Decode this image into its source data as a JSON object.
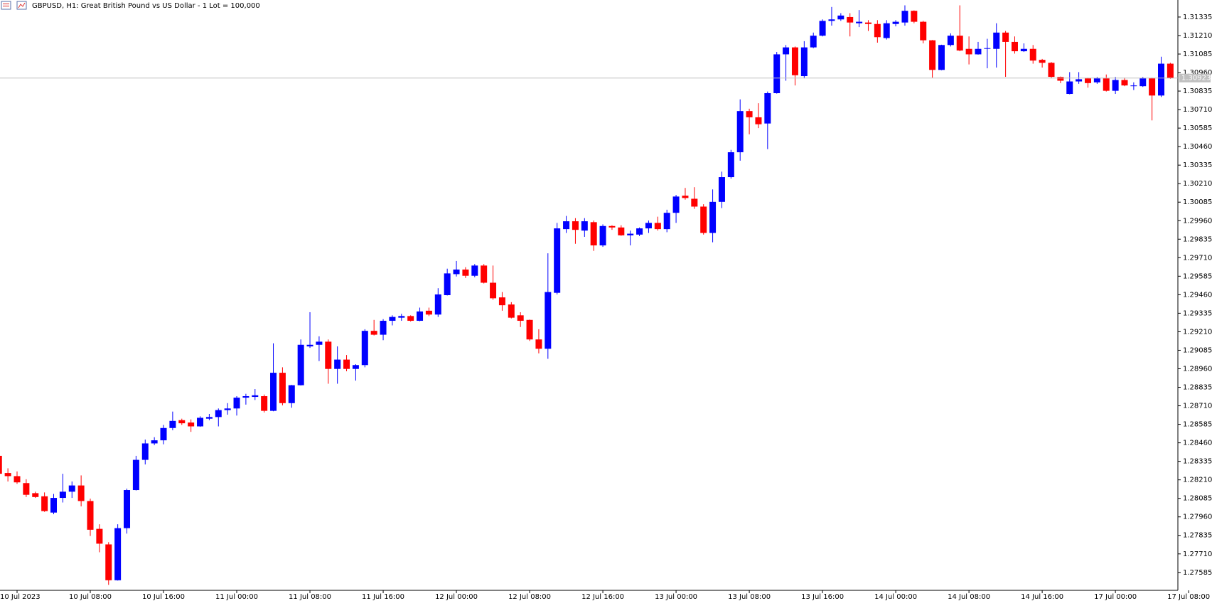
{
  "chart_data": {
    "type": "candlestick",
    "title": "GBPUSD, H1:  Great British Pound vs US Dollar - 1 Lot = 100,000",
    "up_color": "#0000ff",
    "down_color": "#ff0000",
    "grid": false,
    "ylim": [
      1.27464,
      1.3145
    ],
    "yticks": [
      1.27585,
      {
        "value": 1.2771,
        "label": "1.27710"
      },
      1.27835,
      {
        "value": 1.2796,
        "label": "1.27960"
      },
      1.28085,
      {
        "value": 1.2821,
        "label": "1.28210"
      },
      1.28335,
      {
        "value": 1.2846,
        "label": "1.28460"
      },
      1.28585,
      {
        "value": 1.2871,
        "label": "1.28710"
      },
      1.28835,
      {
        "value": 1.2896,
        "label": "1.28960"
      },
      1.29085,
      {
        "value": 1.2921,
        "label": "1.29210"
      },
      1.29335,
      {
        "value": 1.2946,
        "label": "1.29460"
      },
      1.29585,
      {
        "value": 1.2971,
        "label": "1.29710"
      },
      1.29835,
      {
        "value": 1.2996,
        "label": "1.29960"
      },
      1.30085,
      {
        "value": 1.3021,
        "label": "1.30210"
      },
      1.30335,
      {
        "value": 1.3046,
        "label": "1.30460"
      },
      1.30585,
      {
        "value": 1.3071,
        "label": "1.30710"
      },
      1.30835,
      {
        "value": 1.3096,
        "label": "1.30960"
      },
      1.31085,
      {
        "value": 1.3121,
        "label": "1.31210"
      },
      1.31335
    ],
    "bid": 1.30923,
    "categories": [
      null,
      null,
      "10 Jul 2023",
      null,
      null,
      null,
      null,
      null,
      null,
      null,
      "10 Jul 08:00",
      null,
      null,
      null,
      null,
      null,
      null,
      null,
      "10 Jul 16:00",
      null,
      null,
      null,
      null,
      null,
      null,
      null,
      "11 Jul 00:00",
      null,
      null,
      null,
      null,
      null,
      null,
      null,
      "11 Jul 08:00",
      null,
      null,
      null,
      null,
      null,
      null,
      null,
      "11 Jul 16:00",
      null,
      null,
      null,
      null,
      null,
      null,
      null,
      "12 Jul 00:00",
      null,
      null,
      null,
      null,
      null,
      null,
      null,
      "12 Jul 08:00",
      null,
      null,
      null,
      null,
      null,
      null,
      null,
      "12 Jul 16:00",
      null,
      null,
      null,
      null,
      null,
      null,
      null,
      "13 Jul 00:00",
      null,
      null,
      null,
      null,
      null,
      null,
      null,
      "13 Jul 08:00",
      null,
      null,
      null,
      null,
      null,
      null,
      null,
      "13 Jul 16:00",
      null,
      null,
      null,
      null,
      null,
      null,
      null,
      "14 Jul 00:00",
      null,
      null,
      null,
      null,
      null,
      null,
      null,
      "14 Jul 08:00",
      null,
      null,
      null,
      null,
      null,
      null,
      null,
      "14 Jul 16:00",
      null,
      null,
      null,
      null,
      null,
      null,
      null,
      "17 Jul 00:00",
      null,
      null,
      null,
      null,
      null,
      null,
      null,
      "17 Jul 08:00"
    ],
    "open": [
      1.28372,
      1.28256,
      1.28235,
      1.28188,
      1.2812,
      1.28099,
      1.27989,
      1.28088,
      1.2813,
      1.28172,
      1.28067,
      1.27879,
      1.27774,
      1.27532,
      1.27884,
      1.28141,
      1.28345,
      1.28456,
      1.28477,
      1.2856,
      1.28613,
      1.28597,
      1.28571,
      1.28623,
      1.28634,
      1.28681,
      1.28692,
      1.28765,
      1.2877,
      1.28775,
      1.28676,
      1.28933,
      1.28728,
      1.28849,
      1.29111,
      1.29122,
      1.29143,
      1.28959,
      1.29022,
      1.28959,
      1.28985,
      1.29216,
      1.2919,
      1.29284,
      1.29305,
      1.29316,
      1.29284,
      1.29352,
      1.29326,
      1.29457,
      1.29599,
      1.2963,
      1.29588,
      1.29657,
      1.29541,
      1.29442,
      1.29394,
      1.29321,
      1.2929,
      1.29158,
      1.29095,
      1.29473,
      1.29903,
      1.29956,
      1.29893,
      1.2995,
      1.29793,
      1.29924,
      1.29914,
      1.29861,
      1.29866,
      1.29908,
      1.29945,
      1.29903,
      1.30013,
      1.30129,
      1.30108,
      1.30055,
      1.29877,
      1.30087,
      1.30254,
      1.30422,
      1.307,
      1.30658,
      1.30616,
      1.30821,
      1.31083,
      1.3113,
      1.30936,
      1.3113,
      1.31209,
      1.31309,
      1.31319,
      1.31335,
      1.31293,
      1.31298,
      1.31288,
      1.31193,
      1.31288,
      1.31298,
      1.31377,
      1.31303,
      1.31178,
      1.30978,
      1.31146,
      1.31209,
      1.3112,
      1.31083,
      1.3112,
      1.3112,
      1.3123,
      1.31167,
      1.31104,
      1.3112,
      1.31046,
      1.31026,
      1.30931,
      1.30816,
      1.309,
      1.30921,
      1.30894,
      1.30921,
      1.30837,
      1.3091,
      1.30868,
      1.30868,
      1.30921,
      1.30805,
      1.3102,
      null,
      null
    ],
    "high": [
      1.28375,
      1.28288,
      1.28267,
      1.28214,
      1.2813,
      1.28125,
      1.28115,
      1.28251,
      1.28199,
      1.2824,
      1.28083,
      1.2791,
      1.27789,
      1.2791,
      1.28151,
      1.28372,
      1.28482,
      1.28498,
      1.28581,
      1.28671,
      1.28623,
      1.28618,
      1.28639,
      1.28655,
      1.28692,
      1.28728,
      1.28775,
      1.28791,
      1.28823,
      1.28786,
      1.29132,
      1.2897,
      1.28851,
      1.29158,
      1.29342,
      1.29179,
      1.29158,
      1.29111,
      1.29053,
      1.28991,
      1.29227,
      1.2929,
      1.29295,
      1.29321,
      1.29331,
      1.29321,
      1.29373,
      1.29373,
      1.29504,
      1.29636,
      1.29688,
      1.29646,
      1.29667,
      1.29667,
      1.29657,
      1.29478,
      1.2941,
      1.29342,
      1.29292,
      1.29227,
      1.2974,
      1.29945,
      1.29992,
      1.29977,
      1.29977,
      1.29961,
      1.29935,
      1.29929,
      1.29929,
      1.29893,
      1.29914,
      1.29961,
      1.29987,
      1.30034,
      1.30134,
      1.30181,
      1.30186,
      1.30071,
      1.30171,
      1.30291,
      1.30438,
      1.30779,
      1.30716,
      1.30753,
      1.30832,
      1.31099,
      1.31146,
      1.31136,
      1.31172,
      1.3123,
      1.31319,
      1.31403,
      1.31361,
      1.31361,
      1.31382,
      1.31314,
      1.31314,
      1.31314,
      1.31314,
      1.31414,
      1.3138,
      1.31309,
      1.3118,
      1.31148,
      1.31225,
      1.31414,
      1.31204,
      1.31167,
      1.31188,
      1.31293,
      1.31241,
      1.31204,
      1.31157,
      1.31146,
      1.31052,
      1.31031,
      1.30933,
      1.30963,
      1.30963,
      1.30926,
      1.30931,
      1.30947,
      1.30931,
      1.30926,
      1.30894,
      1.30931,
      1.30926,
      1.31067,
      1.31026,
      null,
      null
    ],
    "low": [
      1.2824,
      1.28199,
      1.28183,
      1.28094,
      1.28088,
      1.27994,
      1.27978,
      1.28057,
      1.28088,
      1.28031,
      1.27831,
      1.27721,
      1.27501,
      1.2753,
      1.27847,
      1.28138,
      1.28314,
      1.28445,
      1.2845,
      1.28545,
      1.28581,
      1.28534,
      1.28568,
      1.28613,
      1.28571,
      1.2865,
      1.28644,
      1.28718,
      1.28749,
      1.28665,
      1.28673,
      1.28713,
      1.28697,
      1.28847,
      1.29101,
      1.29012,
      1.28859,
      1.28859,
      1.28943,
      1.2888,
      1.2897,
      1.29185,
      1.29153,
      1.29253,
      1.29284,
      1.29279,
      1.29281,
      1.29316,
      1.2931,
      1.29455,
      1.29583,
      1.29573,
      1.29578,
      1.29536,
      1.29426,
      1.29352,
      1.293,
      1.29242,
      1.29148,
      1.29064,
      1.29027,
      1.29462,
      1.29877,
      1.29804,
      1.29851,
      1.29756,
      1.29783,
      1.29898,
      1.29858,
      1.29793,
      1.29856,
      1.29877,
      1.29893,
      1.29882,
      1.29945,
      1.30102,
      1.3004,
      1.29866,
      1.29814,
      1.30045,
      1.30244,
      1.30365,
      1.30543,
      1.30585,
      1.30443,
      1.30818,
      1.30905,
      1.30873,
      1.30921,
      1.31125,
      1.31204,
      1.31277,
      1.31309,
      1.31204,
      1.31267,
      1.31241,
      1.31162,
      1.31183,
      1.31272,
      1.31277,
      1.31293,
      1.31157,
      1.30926,
      1.30976,
      1.31136,
      1.31104,
      1.31015,
      1.31081,
      1.30989,
      1.30994,
      1.30931,
      1.31088,
      1.31099,
      1.3102,
      1.30994,
      1.30921,
      1.30889,
      1.30813,
      1.30884,
      1.30858,
      1.30884,
      1.30832,
      1.30816,
      1.30868,
      1.30842,
      1.30863,
      1.30637,
      1.30795,
      1.30918,
      null,
      null
    ],
    "close": [
      1.28251,
      1.28235,
      1.28193,
      1.28109,
      1.28094,
      1.27999,
      1.28088,
      1.2813,
      1.28172,
      1.28067,
      1.27873,
      1.27779,
      1.27532,
      1.27884,
      1.28141,
      1.28345,
      1.28456,
      1.28477,
      1.2856,
      1.28608,
      1.28592,
      1.28571,
      1.28629,
      1.28634,
      1.28681,
      1.28692,
      1.28765,
      1.28775,
      1.28781,
      1.28676,
      1.28933,
      1.28728,
      1.28849,
      1.29122,
      1.29122,
      1.29143,
      1.28959,
      1.29022,
      1.28959,
      1.28985,
      1.29216,
      1.2919,
      1.29284,
      1.2931,
      1.29316,
      1.29284,
      1.29347,
      1.29326,
      1.29462,
      1.29604,
      1.2963,
      1.29588,
      1.29657,
      1.29541,
      1.29436,
      1.29389,
      1.29305,
      1.29284,
      1.29158,
      1.29095,
      1.29478,
      1.29908,
      1.29956,
      1.29898,
      1.29956,
      1.29793,
      1.29924,
      1.29914,
      1.29861,
      1.29872,
      1.29908,
      1.29945,
      1.29903,
      1.30013,
      1.30123,
      1.30113,
      1.30055,
      1.29877,
      1.30087,
      1.30254,
      1.30422,
      1.307,
      1.30658,
      1.30611,
      1.30821,
      1.31083,
      1.3113,
      1.30942,
      1.3113,
      1.31209,
      1.31309,
      1.31319,
      1.31345,
      1.31298,
      1.31303,
      1.31288,
      1.31199,
      1.31293,
      1.31303,
      1.31377,
      1.31303,
      1.31178,
      1.30978,
      1.31146,
      1.31209,
      1.31109,
      1.31083,
      1.3112,
      1.31125,
      1.3123,
      1.31167,
      1.31104,
      1.3112,
      1.31041,
      1.31026,
      1.30931,
      1.30905,
      1.309,
      1.30915,
      1.30889,
      1.30921,
      1.30837,
      1.3091,
      1.30873,
      1.30873,
      1.30921,
      1.30805,
      1.3102,
      1.30923,
      null,
      null
    ]
  }
}
